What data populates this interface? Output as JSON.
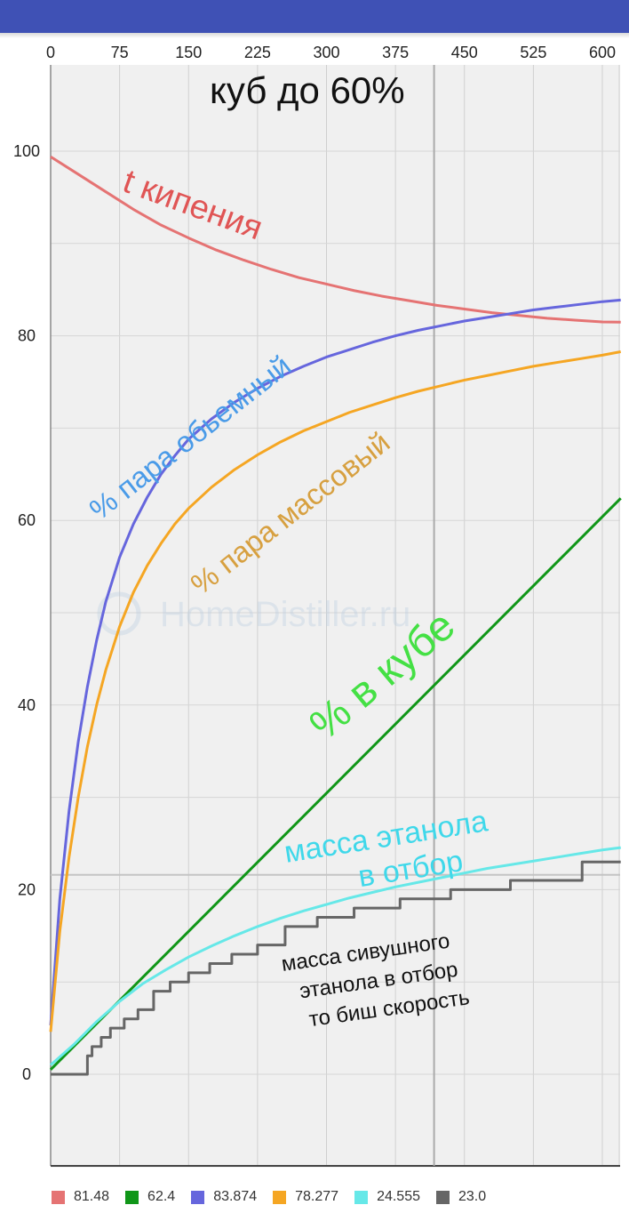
{
  "app": {
    "bar_color": "#3F51B5"
  },
  "chart_data": {
    "type": "line",
    "title": "куб до 60%",
    "watermark": "HomeDistiller.ru",
    "xlim": [
      0,
      620
    ],
    "ylim": [
      -10,
      108
    ],
    "x_ticks": [
      0,
      75,
      150,
      225,
      300,
      375,
      450,
      525,
      600
    ],
    "y_ticks": [
      0,
      20,
      40,
      60,
      80,
      100
    ],
    "grid": true,
    "cursor_x": 417,
    "cursor_y": 21.6,
    "legend_position": "bottom",
    "series": [
      {
        "id": "t_boil",
        "color": "#E57373",
        "legend_value": "81.48",
        "annotation": "t кипения",
        "points": [
          [
            0,
            99.4
          ],
          [
            30,
            97.5
          ],
          [
            60,
            95.6
          ],
          [
            90,
            93.7
          ],
          [
            120,
            92.0
          ],
          [
            150,
            90.6
          ],
          [
            180,
            89.3
          ],
          [
            210,
            88.2
          ],
          [
            240,
            87.2
          ],
          [
            270,
            86.3
          ],
          [
            300,
            85.6
          ],
          [
            330,
            84.9
          ],
          [
            360,
            84.3
          ],
          [
            390,
            83.8
          ],
          [
            420,
            83.3
          ],
          [
            450,
            82.9
          ],
          [
            480,
            82.5
          ],
          [
            510,
            82.2
          ],
          [
            540,
            81.9
          ],
          [
            570,
            81.7
          ],
          [
            600,
            81.5
          ],
          [
            620,
            81.48
          ]
        ]
      },
      {
        "id": "green",
        "color": "#109618",
        "legend_value": "62.4",
        "annotation": "% в кубе",
        "points": [
          [
            0,
            0.5
          ],
          [
            620,
            62.4
          ]
        ]
      },
      {
        "id": "vol",
        "color": "#6666DD",
        "legend_value": "83.874",
        "annotation": "% пара обьемный",
        "points": [
          [
            0,
            5.3
          ],
          [
            10,
            19
          ],
          [
            20,
            28.5
          ],
          [
            30,
            36
          ],
          [
            40,
            42
          ],
          [
            50,
            47
          ],
          [
            60,
            51.2
          ],
          [
            75,
            56
          ],
          [
            90,
            59.6
          ],
          [
            105,
            62.5
          ],
          [
            120,
            65
          ],
          [
            135,
            67
          ],
          [
            150,
            68.8
          ],
          [
            175,
            71
          ],
          [
            200,
            72.8
          ],
          [
            225,
            74.3
          ],
          [
            250,
            75.6
          ],
          [
            275,
            76.7
          ],
          [
            300,
            77.7
          ],
          [
            325,
            78.5
          ],
          [
            350,
            79.3
          ],
          [
            375,
            80
          ],
          [
            400,
            80.6
          ],
          [
            425,
            81.1
          ],
          [
            450,
            81.6
          ],
          [
            475,
            82
          ],
          [
            500,
            82.4
          ],
          [
            525,
            82.8
          ],
          [
            550,
            83.1
          ],
          [
            575,
            83.4
          ],
          [
            600,
            83.7
          ],
          [
            620,
            83.874
          ]
        ]
      },
      {
        "id": "mass",
        "color": "#F5A623",
        "legend_value": "78.277",
        "annotation": "% пара массовый",
        "points": [
          [
            0,
            4.6
          ],
          [
            10,
            15.5
          ],
          [
            20,
            23.5
          ],
          [
            30,
            30
          ],
          [
            40,
            35.5
          ],
          [
            50,
            40
          ],
          [
            60,
            43.8
          ],
          [
            75,
            48.5
          ],
          [
            90,
            52.2
          ],
          [
            105,
            55.1
          ],
          [
            120,
            57.5
          ],
          [
            135,
            59.6
          ],
          [
            150,
            61.3
          ],
          [
            175,
            63.6
          ],
          [
            200,
            65.5
          ],
          [
            225,
            67.1
          ],
          [
            250,
            68.5
          ],
          [
            275,
            69.7
          ],
          [
            300,
            70.7
          ],
          [
            325,
            71.7
          ],
          [
            350,
            72.5
          ],
          [
            375,
            73.3
          ],
          [
            400,
            74
          ],
          [
            425,
            74.6
          ],
          [
            450,
            75.2
          ],
          [
            475,
            75.7
          ],
          [
            500,
            76.2
          ],
          [
            525,
            76.7
          ],
          [
            550,
            77.1
          ],
          [
            575,
            77.5
          ],
          [
            600,
            77.9
          ],
          [
            620,
            78.277
          ]
        ]
      },
      {
        "id": "ethanol_mass",
        "color": "#66E8E8",
        "legend_value": "24.555",
        "annotation": "масса этанола в отбор",
        "points": [
          [
            0,
            1
          ],
          [
            25,
            3.2
          ],
          [
            50,
            5.7
          ],
          [
            75,
            7.9
          ],
          [
            100,
            9.8
          ],
          [
            125,
            11.3
          ],
          [
            150,
            12.7
          ],
          [
            175,
            13.9
          ],
          [
            200,
            15
          ],
          [
            225,
            16
          ],
          [
            250,
            16.9
          ],
          [
            275,
            17.7
          ],
          [
            300,
            18.4
          ],
          [
            325,
            19.1
          ],
          [
            350,
            19.7
          ],
          [
            375,
            20.3
          ],
          [
            400,
            20.8
          ],
          [
            425,
            21.3
          ],
          [
            450,
            21.8
          ],
          [
            475,
            22.3
          ],
          [
            500,
            22.7
          ],
          [
            525,
            23.1
          ],
          [
            550,
            23.5
          ],
          [
            575,
            23.9
          ],
          [
            600,
            24.3
          ],
          [
            620,
            24.555
          ]
        ]
      },
      {
        "id": "fusel",
        "color": "#666666",
        "legend_value": "23.0",
        "annotation": "масса сивушного этанола в отбор то биш скорость",
        "step": true,
        "points": [
          [
            0,
            0
          ],
          [
            40,
            2
          ],
          [
            45,
            3
          ],
          [
            55,
            4
          ],
          [
            65,
            5
          ],
          [
            80,
            6
          ],
          [
            95,
            7
          ],
          [
            112,
            9
          ],
          [
            130,
            10
          ],
          [
            150,
            11
          ],
          [
            173,
            12
          ],
          [
            197,
            13
          ],
          [
            225,
            14
          ],
          [
            255,
            16
          ],
          [
            290,
            17
          ],
          [
            330,
            18
          ],
          [
            380,
            19
          ],
          [
            435,
            20
          ],
          [
            500,
            21
          ],
          [
            578,
            23
          ],
          [
            620,
            23
          ]
        ]
      }
    ]
  }
}
